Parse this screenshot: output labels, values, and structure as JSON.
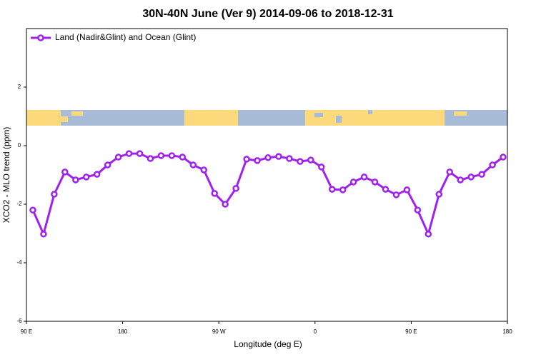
{
  "chart_data": {
    "type": "line",
    "title": "30N-40N June (Ver 9)   2014-09-06 to 2018-12-31",
    "x_label": "Longitude (deg E)",
    "y_label": "XCO2 - MLO trend (ppm)",
    "x": [
      96,
      106,
      116,
      126,
      136,
      146,
      156,
      166,
      176,
      186,
      196,
      206,
      216,
      226,
      236,
      246,
      256,
      266,
      276,
      286,
      296,
      306,
      316,
      326,
      336,
      346,
      356,
      366,
      376,
      386,
      396,
      406,
      416,
      426,
      436,
      446,
      456,
      466,
      476,
      486,
      496,
      506,
      516,
      526,
      536
    ],
    "series": [
      {
        "name": "Land (Nadir&Glint) and Ocean (Glint)",
        "color": "#a020f0",
        "values": [
          -2.2,
          -3.02,
          -1.66,
          -0.9,
          -1.17,
          -1.07,
          -0.98,
          -0.66,
          -0.39,
          -0.27,
          -0.27,
          -0.44,
          -0.34,
          -0.34,
          -0.39,
          -0.66,
          -0.83,
          -1.63,
          -2.0,
          -1.46,
          -0.46,
          -0.51,
          -0.41,
          -0.37,
          -0.44,
          -0.54,
          -0.49,
          -0.73,
          -1.49,
          -1.51,
          -1.24,
          -1.07,
          -1.24,
          -1.49,
          -1.68,
          -1.51,
          -2.2,
          -3.02,
          -1.66,
          -0.9,
          -1.17,
          -1.07,
          -0.98,
          -0.66,
          -0.39
        ]
      }
    ],
    "xlim": [
      90,
      540
    ],
    "xticks": [
      {
        "value": 90,
        "label": "90 E"
      },
      180,
      {
        "value": 270,
        "label": "90 W"
      },
      {
        "value": 360,
        "label": "0"
      },
      {
        "value": 450,
        "label": "90 E"
      },
      {
        "value": 540,
        "label": "180"
      }
    ],
    "ylim": [
      -6,
      4
    ],
    "yticks": [
      -6,
      -4,
      -2,
      0,
      2
    ],
    "legend": "top-left"
  }
}
